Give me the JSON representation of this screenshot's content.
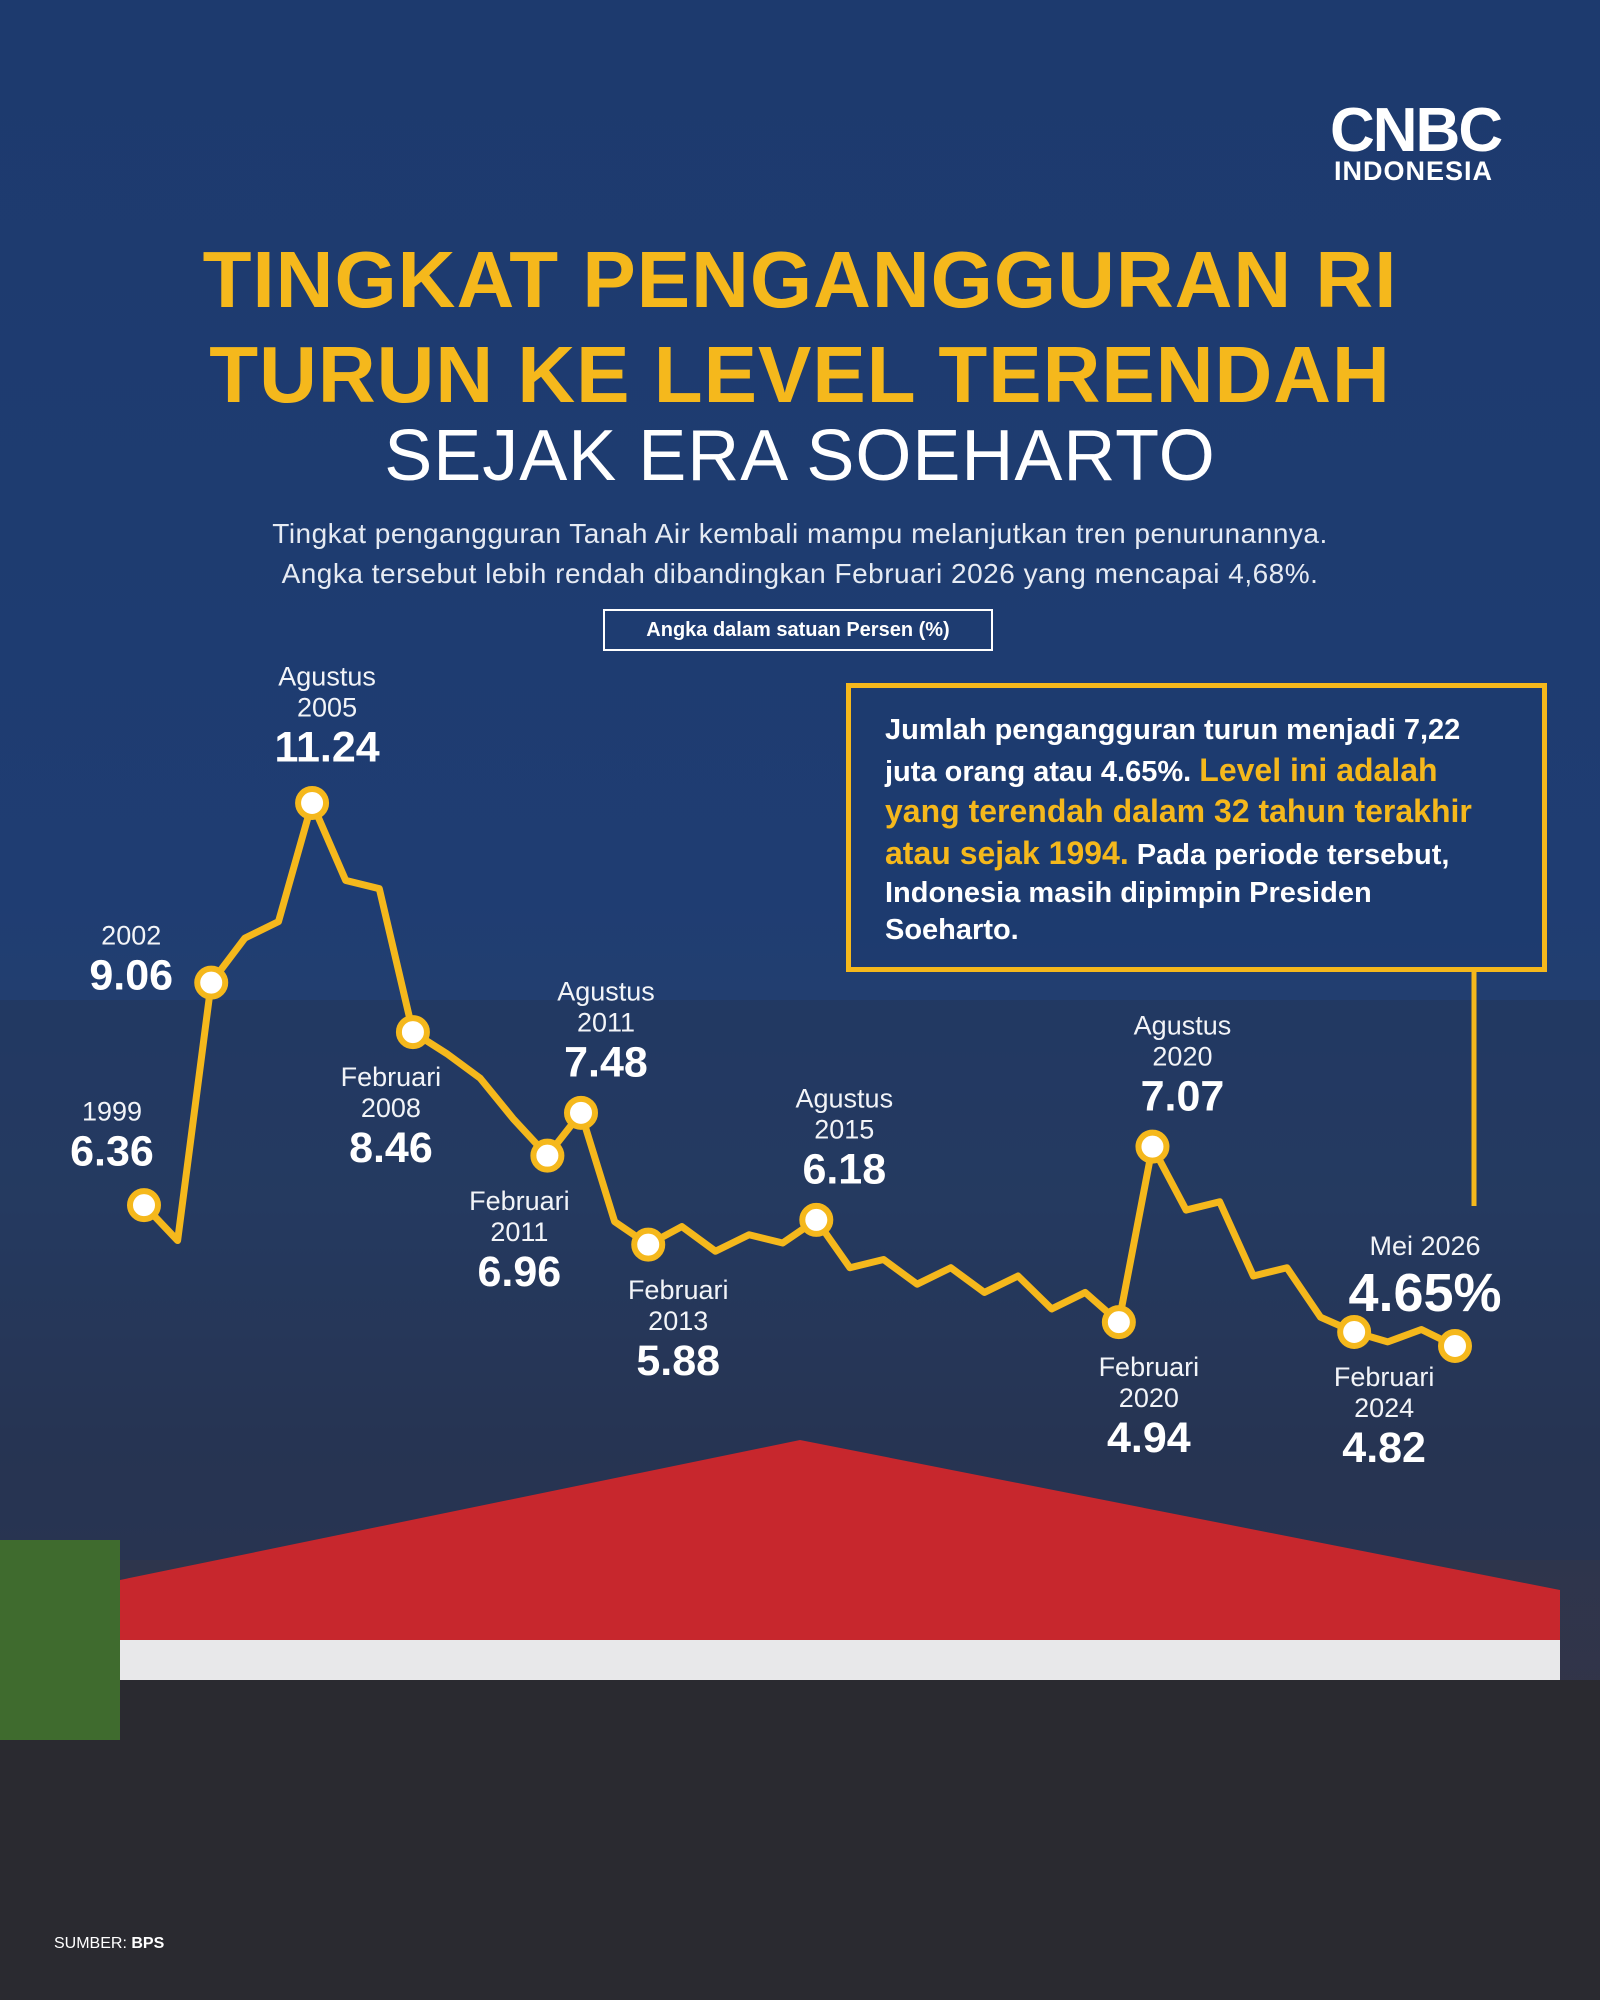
{
  "logo": {
    "name": "CNBC",
    "sub": "INDONESIA"
  },
  "title": [
    "TINGKAT PENGANGGURAN RI",
    "TURUN KE LEVEL TERENDAH",
    "SEJAK ERA SOEHARTO"
  ],
  "subtitle": [
    "Tingkat pengangguran Tanah Air kembali mampu melanjutkan tren penurunannya.",
    "Angka tersebut lebih rendah dibandingkan Februari 2026 yang mencapai 4,68%."
  ],
  "unit": "Angka dalam satuan Persen (%)",
  "callout": {
    "text": "Jumlah pengangguran turun menjadi 7,22 juta orang atau 4.65%.",
    "highlight": "Level ini adalah yang terendah dalam 32 tahun terakhir atau sejak 1994.",
    "note": "Pada periode tersebut, Indonesia masih dipimpin Presiden Soeharto."
  },
  "source": {
    "label": "SUMBER:",
    "name": "BPS"
  },
  "chart_data": {
    "type": "line",
    "color": "#f5b81c",
    "categories": [
      "1999",
      null,
      "2002",
      null,
      null,
      "Agustus 2005",
      null,
      null,
      "Februari 2008",
      null,
      null,
      null,
      "Februari 2011",
      "Agustus 2011",
      null,
      "Februari 2013",
      null,
      null,
      null,
      null,
      "Agustus 2015",
      null,
      null,
      null,
      null,
      null,
      null,
      null,
      null,
      "Februari 2020",
      "Agustus 2020",
      null,
      null,
      null,
      null,
      null,
      "Februari 2024",
      null,
      null,
      "Mei 2026"
    ],
    "values": [
      6.36,
      5.93,
      9.06,
      9.6,
      9.8,
      11.24,
      10.3,
      10.2,
      8.46,
      8.2,
      7.9,
      7.4,
      6.96,
      7.48,
      6.16,
      5.88,
      6.1,
      5.8,
      6.0,
      5.9,
      6.18,
      5.6,
      5.7,
      5.4,
      5.6,
      5.3,
      5.5,
      5.1,
      5.3,
      4.94,
      7.07,
      6.3,
      6.4,
      5.5,
      5.6,
      5.0,
      4.82,
      4.7,
      4.85,
      4.65
    ],
    "value_labels": [
      null,
      null,
      null,
      null,
      null,
      null,
      null,
      null,
      null,
      null,
      null,
      null,
      null,
      null,
      null,
      null,
      null,
      null,
      null,
      null,
      null,
      null,
      null,
      null,
      null,
      null,
      null,
      null,
      null,
      null,
      null,
      null,
      null,
      null,
      null,
      null,
      null,
      null,
      null,
      "4.65%"
    ]
  }
}
